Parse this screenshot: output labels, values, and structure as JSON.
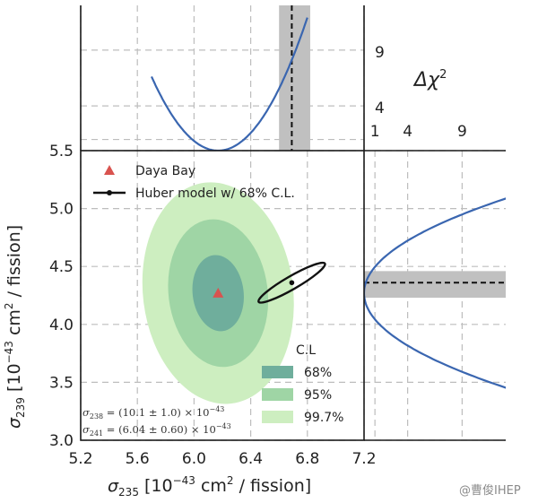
{
  "chart_data": [
    {
      "type": "contour",
      "panel": "main",
      "xlabel": "σ235 [10^-43 cm2 / fission]",
      "ylabel": "σ239 [10^-43 cm2 / fission]",
      "xlabel_parts": {
        "sym": "σ",
        "sub": "235",
        "pre": " [10",
        "exp": "−43",
        "post": " cm",
        "exp2": "2",
        "post2": " / fission]"
      },
      "ylabel_parts": {
        "sym": "σ",
        "sub": "239",
        "pre": " [10",
        "exp": "−43",
        "post": " cm",
        "exp2": "2",
        "post2": " / fission]"
      },
      "xlim": [
        5.2,
        7.2
      ],
      "ylim": [
        3.0,
        5.5
      ],
      "xticks": [
        "5.2",
        "5.6",
        "6.0",
        "6.4",
        "6.8",
        "7.2"
      ],
      "yticks": [
        "3.0",
        "3.5",
        "4.0",
        "4.5",
        "5.0",
        "5.5"
      ],
      "grid": true,
      "daya_bay_point": {
        "x": 6.17,
        "y": 4.27
      },
      "confidence_regions": [
        {
          "level": "99.7%",
          "color": "#cdeec0",
          "center": [
            6.17,
            4.27
          ],
          "semi_axis_x": 0.53,
          "semi_axis_y": 0.96,
          "rotation_deg": -7
        },
        {
          "level": "95%",
          "color": "#9fd5a5",
          "center": [
            6.17,
            4.27
          ],
          "semi_axis_x": 0.35,
          "semi_axis_y": 0.64,
          "rotation_deg": -7
        },
        {
          "level": "68%",
          "color": "#6fae9c",
          "center": [
            6.17,
            4.27
          ],
          "semi_axis_x": 0.18,
          "semi_axis_y": 0.33,
          "rotation_deg": -7
        }
      ],
      "huber_model": {
        "center": [
          6.69,
          4.36
        ],
        "semi_major": 0.27,
        "semi_minor": 0.035,
        "rotation_deg": 30
      },
      "legend": {
        "placement": "top-left",
        "entries": [
          {
            "label": "Daya Bay",
            "marker": "triangle",
            "color": "#d9534f"
          },
          {
            "label": "Huber model w/ 68% C.L.",
            "marker": "line-dot",
            "color": "#111111"
          }
        ]
      },
      "cl_legend": {
        "title": "C.L",
        "placement": "bottom-right",
        "entries": [
          {
            "label": "68%",
            "color": "#6fae9c"
          },
          {
            "label": "95%",
            "color": "#9fd5a5"
          },
          {
            "label": "99.7%",
            "color": "#cdeec0"
          }
        ]
      },
      "annotations": [
        {
          "sym": "σ",
          "sub": "238",
          "text": " = (10.1 ± 1.0) × 10",
          "exp": "−43"
        },
        {
          "sym": "σ",
          "sub": "241",
          "text": " = (6.04 ± 0.60) × 10",
          "exp": "−43"
        }
      ]
    },
    {
      "type": "line",
      "panel": "top",
      "ylabel": "Δχ2",
      "ylabel_parts": {
        "text": "Δχ",
        "exp": "2"
      },
      "xlim": [
        5.2,
        7.2
      ],
      "ylim": [
        0,
        13
      ],
      "yticks": [
        "4",
        "9"
      ],
      "grid": true,
      "curve_color": "#3a66b0",
      "minimum": {
        "x": 6.17,
        "y": 0
      },
      "curvature": 30,
      "best_fit_band": {
        "x_min": 6.6,
        "x_max": 6.82,
        "best": 6.69,
        "color": "#c0c0c0"
      }
    },
    {
      "type": "line",
      "panel": "right",
      "xlim": [
        0,
        13
      ],
      "ylim": [
        3.0,
        5.5
      ],
      "xticks": [
        "1",
        "4",
        "9"
      ],
      "grid": true,
      "curve_color": "#3a66b0",
      "minimum": {
        "x": 0,
        "y": 4.27
      },
      "curvature": 19.5,
      "best_fit_band": {
        "y_min": 4.23,
        "y_max": 4.46,
        "best": 4.36,
        "color": "#c0c0c0"
      }
    }
  ],
  "watermark": "@曹俊IHEP"
}
